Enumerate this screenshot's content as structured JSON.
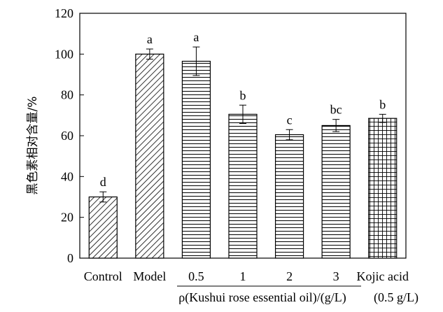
{
  "chart_data": {
    "type": "bar",
    "ylabel": "黑色素相对含量/%",
    "ylim": [
      0,
      120
    ],
    "yticks": [
      0,
      20,
      40,
      60,
      80,
      100,
      120
    ],
    "categories": [
      "Control",
      "Model",
      "0.5",
      "1",
      "2",
      "3",
      "Kojic acid"
    ],
    "values": [
      30,
      100,
      96.5,
      70.5,
      60.5,
      65,
      68.5
    ],
    "errors": [
      2.5,
      2.5,
      7,
      4.5,
      2.5,
      3,
      2
    ],
    "significance": [
      "d",
      "a",
      "a",
      "b",
      "c",
      "bc",
      "b"
    ],
    "patterns": [
      "diagonal",
      "diagonal",
      "horizontal",
      "horizontal",
      "horizontal",
      "horizontal",
      "grid"
    ],
    "xlabel_main": "ρ(Kushui rose essential oil)/(g/L)",
    "xlabel_extra": "(0.5 g/L)",
    "grid": false,
    "legend": "none"
  }
}
